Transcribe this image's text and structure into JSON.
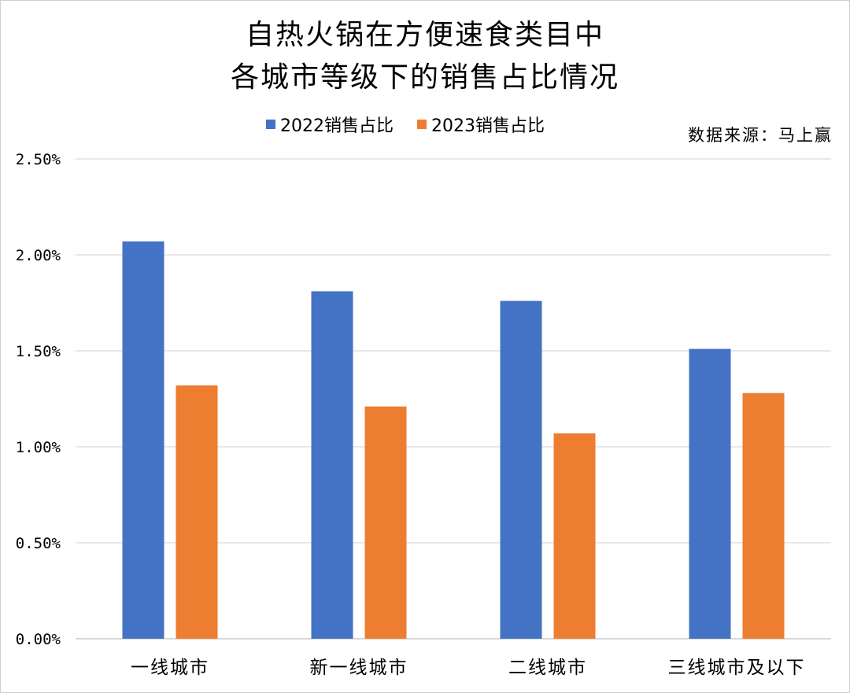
{
  "chart_data": {
    "type": "bar",
    "title_lines": [
      "自热火锅在方便速食类目中",
      "各城市等级下的销售占比情况"
    ],
    "source": "数据来源：马上赢",
    "categories": [
      "一线城市",
      "新一线城市",
      "二线城市",
      "三线城市及以下"
    ],
    "series": [
      {
        "name": "2022销售占比",
        "color": "#4472C4",
        "values": [
          2.07,
          1.81,
          1.76,
          1.51
        ]
      },
      {
        "name": "2023销售占比",
        "color": "#ED7D31",
        "values": [
          1.32,
          1.21,
          1.07,
          1.28
        ]
      }
    ],
    "yticks": [
      "0.00%",
      "0.50%",
      "1.00%",
      "1.50%",
      "2.00%",
      "2.50%"
    ],
    "ylim": [
      0,
      2.5
    ],
    "unit": "%",
    "grid": true,
    "legend_position": "top"
  }
}
